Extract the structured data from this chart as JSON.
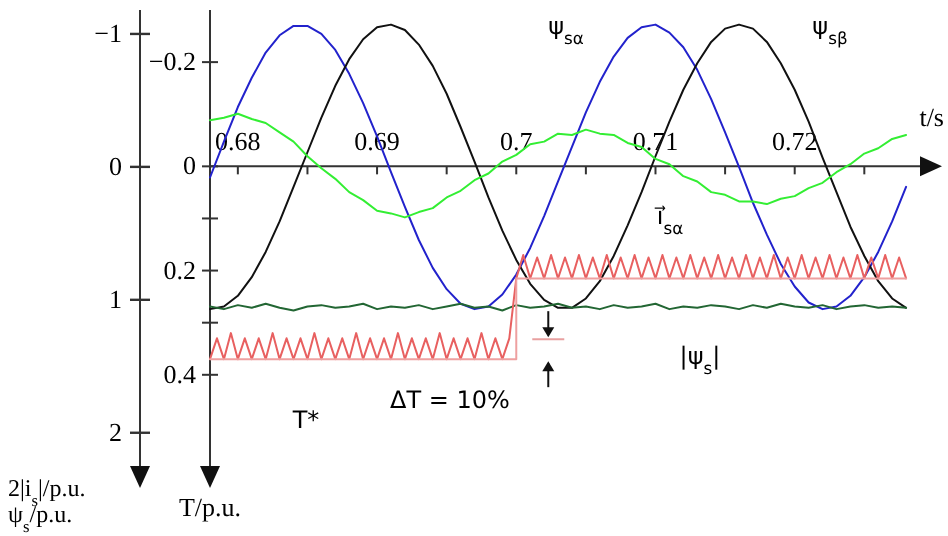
{
  "chart_data": {
    "type": "line",
    "xlabel": "t/s",
    "y2label": "2|i$_{s}$|/p.u.\nψ$_{s}$/p.u.",
    "ylabel": "T/p.u.",
    "xlim": [
      0.678,
      0.729
    ],
    "xticks": [
      0.68,
      {
        "value": 0.685,
        "label": null
      },
      0.69,
      {
        "value": 0.695,
        "label": null
      },
      {
        "value": 0.7,
        "label": "0.7"
      },
      {
        "value": 0.705,
        "label": null
      },
      0.71,
      {
        "value": 0.715,
        "label": null
      },
      0.72,
      {
        "value": 0.725,
        "label": null
      }
    ],
    "y2lim": [
      2.25,
      -1.18
    ],
    "y2ticks": [
      {
        "value": -1,
        "label": "−1"
      },
      0,
      1,
      2
    ],
    "ylim": [
      0.575,
      -0.3
    ],
    "yticks": [
      {
        "value": -0.2,
        "label": "−0.2"
      },
      0,
      {
        "value": 0.1,
        "label": null
      },
      0.2,
      {
        "value": 0.3,
        "label": null
      },
      0.4
    ],
    "x": [
      0.678,
      0.679,
      0.68,
      0.681,
      0.682,
      0.683,
      0.684,
      0.685,
      0.686,
      0.687,
      0.688,
      0.689,
      0.69,
      0.691,
      0.692,
      0.693,
      0.694,
      0.695,
      0.696,
      0.697,
      0.698,
      0.699,
      0.7,
      0.701,
      0.702,
      0.703,
      0.704,
      0.705,
      0.706,
      0.707,
      0.708,
      0.709,
      0.71,
      0.711,
      0.712,
      0.713,
      0.714,
      0.715,
      0.716,
      0.717,
      0.718,
      0.719,
      0.72,
      0.721,
      0.722,
      0.723,
      0.724,
      0.725,
      0.726,
      0.727,
      0.728
    ],
    "series": [
      {
        "color": "#2222cc",
        "axis": "y2",
        "values": [
          0.08,
          -0.19,
          -0.45,
          -0.67,
          -0.86,
          -0.99,
          -1.06,
          -1.06,
          -1.0,
          -0.88,
          -0.7,
          -0.48,
          -0.23,
          0.04,
          0.3,
          0.55,
          0.76,
          0.92,
          1.03,
          1.07,
          1.05,
          0.96,
          0.81,
          0.61,
          0.37,
          0.11,
          -0.15,
          -0.41,
          -0.64,
          -0.83,
          -0.97,
          -1.05,
          -1.07,
          -1.01,
          -0.9,
          -0.73,
          -0.51,
          -0.26,
          0.0,
          0.27,
          0.51,
          0.73,
          0.9,
          1.02,
          1.07,
          1.05,
          0.97,
          0.83,
          0.64,
          0.41,
          0.15
        ]
      },
      {
        "color": "#111111",
        "axis": "y2",
        "values": [
          1.07,
          1.05,
          0.97,
          0.83,
          0.64,
          0.41,
          0.15,
          -0.11,
          -0.37,
          -0.61,
          -0.81,
          -0.96,
          -1.05,
          -1.07,
          -1.03,
          -0.92,
          -0.76,
          -0.55,
          -0.3,
          -0.04,
          0.23,
          0.48,
          0.7,
          0.88,
          1.0,
          1.06,
          1.06,
          0.99,
          0.86,
          0.67,
          0.44,
          0.19,
          -0.08,
          -0.34,
          -0.58,
          -0.78,
          -0.94,
          -1.04,
          -1.07,
          -1.04,
          -0.94,
          -0.78,
          -0.58,
          -0.34,
          -0.07,
          0.19,
          0.45,
          0.67,
          0.86,
          0.99,
          1.06
        ]
      },
      {
        "color": "#33ee33",
        "axis": "y2",
        "values": [
          -0.35,
          -0.37,
          -0.4,
          -0.36,
          -0.33,
          -0.26,
          -0.19,
          -0.08,
          0.01,
          0.09,
          0.19,
          0.25,
          0.33,
          0.35,
          0.38,
          0.34,
          0.31,
          0.23,
          0.18,
          0.1,
          0.05,
          -0.04,
          -0.09,
          -0.17,
          -0.19,
          -0.25,
          -0.24,
          -0.28,
          -0.25,
          -0.24,
          -0.18,
          -0.15,
          -0.06,
          -0.02,
          0.07,
          0.11,
          0.19,
          0.21,
          0.26,
          0.26,
          0.28,
          0.24,
          0.22,
          0.16,
          0.12,
          0.04,
          -0.02,
          -0.1,
          -0.14,
          -0.21,
          -0.24
        ]
      },
      {
        "color": "#226633",
        "axis": "y2",
        "values": [
          1.05,
          1.07,
          1.04,
          1.06,
          1.03,
          1.06,
          1.08,
          1.05,
          1.04,
          1.06,
          1.05,
          1.03,
          1.07,
          1.05,
          1.06,
          1.04,
          1.07,
          1.05,
          1.03,
          1.06,
          1.05,
          1.08,
          1.04,
          1.06,
          1.05,
          1.03,
          1.06,
          1.05,
          1.07,
          1.04,
          1.06,
          1.05,
          1.03,
          1.07,
          1.05,
          1.06,
          1.04,
          1.05,
          1.07,
          1.04,
          1.06,
          1.03,
          1.05,
          1.06,
          1.04,
          1.07,
          1.05,
          1.04,
          1.06,
          1.05,
          1.06
        ]
      },
      {
        "color": "#e86060",
        "x": [
          0.678,
          0.6785,
          0.679,
          0.6795,
          0.68,
          0.6805,
          0.681,
          0.6815,
          0.682,
          0.6825,
          0.683,
          0.6835,
          0.684,
          0.6845,
          0.685,
          0.6855,
          0.686,
          0.6865,
          0.687,
          0.6875,
          0.688,
          0.6885,
          0.689,
          0.6895,
          0.69,
          0.6905,
          0.691,
          0.6915,
          0.692,
          0.6925,
          0.693,
          0.6935,
          0.694,
          0.6945,
          0.695,
          0.6955,
          0.696,
          0.6965,
          0.697,
          0.6975,
          0.698,
          0.6985,
          0.699,
          0.6995,
          0.7,
          0.7005,
          0.701,
          0.7015,
          0.702,
          0.7025,
          0.703,
          0.7035,
          0.704,
          0.7045,
          0.705,
          0.7055,
          0.706,
          0.7065,
          0.707,
          0.7075,
          0.708,
          0.7085,
          0.709,
          0.7095,
          0.71,
          0.7105,
          0.711,
          0.7115,
          0.712,
          0.7125,
          0.713,
          0.7135,
          0.714,
          0.7145,
          0.715,
          0.7155,
          0.716,
          0.7165,
          0.717,
          0.7175,
          0.718,
          0.7185,
          0.719,
          0.7195,
          0.72,
          0.7205,
          0.721,
          0.7215,
          0.722,
          0.7225,
          0.723,
          0.7235,
          0.724,
          0.7245,
          0.725,
          0.7255,
          0.726,
          0.7265,
          0.727,
          0.7275,
          0.728
        ],
        "values": [
          0.37,
          0.33,
          0.37,
          0.32,
          0.37,
          0.33,
          0.37,
          0.33,
          0.37,
          0.32,
          0.37,
          0.33,
          0.37,
          0.33,
          0.37,
          0.32,
          0.37,
          0.33,
          0.37,
          0.33,
          0.37,
          0.32,
          0.37,
          0.33,
          0.37,
          0.33,
          0.37,
          0.32,
          0.37,
          0.33,
          0.37,
          0.33,
          0.37,
          0.32,
          0.37,
          0.33,
          0.37,
          0.33,
          0.37,
          0.32,
          0.37,
          0.33,
          0.37,
          0.33,
          0.215,
          0.17,
          0.215,
          0.175,
          0.215,
          0.17,
          0.215,
          0.175,
          0.215,
          0.17,
          0.215,
          0.175,
          0.215,
          0.17,
          0.215,
          0.175,
          0.215,
          0.17,
          0.215,
          0.175,
          0.215,
          0.17,
          0.215,
          0.175,
          0.215,
          0.17,
          0.215,
          0.175,
          0.215,
          0.17,
          0.215,
          0.175,
          0.215,
          0.17,
          0.215,
          0.175,
          0.215,
          0.17,
          0.215,
          0.175,
          0.215,
          0.17,
          0.215,
          0.175,
          0.215,
          0.17,
          0.215,
          0.175,
          0.215,
          0.17,
          0.215,
          0.175,
          0.215,
          0.17,
          0.215,
          0.175,
          0.215
        ]
      },
      {
        "type": "step",
        "color": "#eea0a0",
        "x": [
          0.678,
          0.7,
          0.728
        ],
        "values": [
          0.37,
          0.215,
          0.215
        ]
      }
    ],
    "annotations": [
      "ψ$_{sα}$",
      "ψ$_{sβ}$",
      "i⃗$_{sα}$",
      "|ψ$_{s}$|",
      "T*",
      "ΔT = 10%"
    ]
  }
}
